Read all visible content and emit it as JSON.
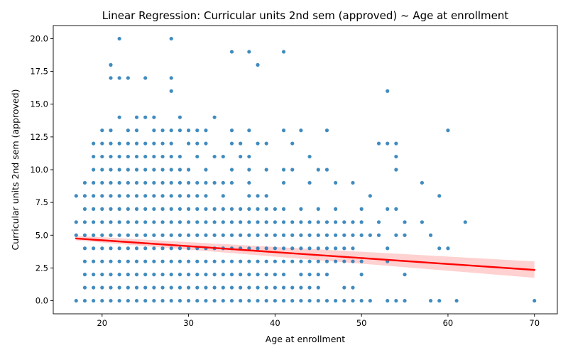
{
  "chart_data": {
    "type": "scatter",
    "title": "Linear Regression: Curricular units 2nd sem (approved) ~ Age at enrollment",
    "xlabel": "Age at enrollment",
    "ylabel": "Curricular units 2nd sem (approved)",
    "xlim": [
      14.35,
      72.65
    ],
    "ylim": [
      -1.0,
      21.0
    ],
    "xticks": [
      20,
      30,
      40,
      50,
      60,
      70
    ],
    "yticks": [
      0.0,
      2.5,
      5.0,
      7.5,
      10.0,
      12.5,
      15.0,
      17.5,
      20.0
    ],
    "xtick_labels": [
      "20",
      "30",
      "40",
      "50",
      "60",
      "70"
    ],
    "ytick_labels": [
      "0.0",
      "2.5",
      "5.0",
      "7.5",
      "10.0",
      "12.5",
      "15.0",
      "17.5",
      "20.0"
    ],
    "grid": false,
    "legend": "none",
    "colors": {
      "points": "#1f77b4",
      "regression_line": "#ff0000",
      "confidence_band": "#ffb3b3"
    },
    "regression": {
      "x": [
        17,
        70
      ],
      "y": [
        4.75,
        2.35
      ],
      "ci_lower": [
        4.6,
        1.75
      ],
      "ci_upper": [
        4.95,
        3.0
      ]
    },
    "points": [
      [
        17,
        0
      ],
      [
        17,
        5
      ],
      [
        17,
        6
      ],
      [
        17,
        8
      ],
      [
        18,
        0
      ],
      [
        18,
        1
      ],
      [
        18,
        2
      ],
      [
        18,
        3
      ],
      [
        18,
        4
      ],
      [
        18,
        5
      ],
      [
        18,
        6
      ],
      [
        18,
        7
      ],
      [
        18,
        8
      ],
      [
        18,
        9
      ],
      [
        19,
        0
      ],
      [
        19,
        1
      ],
      [
        19,
        2
      ],
      [
        19,
        3
      ],
      [
        19,
        4
      ],
      [
        19,
        5
      ],
      [
        19,
        6
      ],
      [
        19,
        7
      ],
      [
        19,
        8
      ],
      [
        19,
        9
      ],
      [
        19,
        10
      ],
      [
        19,
        11
      ],
      [
        19,
        12
      ],
      [
        20,
        0
      ],
      [
        20,
        1
      ],
      [
        20,
        2
      ],
      [
        20,
        3
      ],
      [
        20,
        4
      ],
      [
        20,
        5
      ],
      [
        20,
        6
      ],
      [
        20,
        7
      ],
      [
        20,
        8
      ],
      [
        20,
        9
      ],
      [
        20,
        10
      ],
      [
        20,
        11
      ],
      [
        20,
        12
      ],
      [
        20,
        13
      ],
      [
        21,
        0
      ],
      [
        21,
        1
      ],
      [
        21,
        2
      ],
      [
        21,
        3
      ],
      [
        21,
        4
      ],
      [
        21,
        5
      ],
      [
        21,
        6
      ],
      [
        21,
        7
      ],
      [
        21,
        8
      ],
      [
        21,
        9
      ],
      [
        21,
        10
      ],
      [
        21,
        11
      ],
      [
        21,
        12
      ],
      [
        21,
        13
      ],
      [
        21,
        17
      ],
      [
        21,
        18
      ],
      [
        22,
        0
      ],
      [
        22,
        1
      ],
      [
        22,
        2
      ],
      [
        22,
        3
      ],
      [
        22,
        4
      ],
      [
        22,
        5
      ],
      [
        22,
        6
      ],
      [
        22,
        7
      ],
      [
        22,
        8
      ],
      [
        22,
        9
      ],
      [
        22,
        10
      ],
      [
        22,
        11
      ],
      [
        22,
        12
      ],
      [
        22,
        14
      ],
      [
        22,
        17
      ],
      [
        22,
        20
      ],
      [
        23,
        0
      ],
      [
        23,
        1
      ],
      [
        23,
        2
      ],
      [
        23,
        3
      ],
      [
        23,
        4
      ],
      [
        23,
        5
      ],
      [
        23,
        6
      ],
      [
        23,
        7
      ],
      [
        23,
        8
      ],
      [
        23,
        9
      ],
      [
        23,
        10
      ],
      [
        23,
        11
      ],
      [
        23,
        12
      ],
      [
        23,
        13
      ],
      [
        23,
        17
      ],
      [
        24,
        0
      ],
      [
        24,
        1
      ],
      [
        24,
        2
      ],
      [
        24,
        3
      ],
      [
        24,
        4
      ],
      [
        24,
        5
      ],
      [
        24,
        6
      ],
      [
        24,
        7
      ],
      [
        24,
        8
      ],
      [
        24,
        9
      ],
      [
        24,
        10
      ],
      [
        24,
        11
      ],
      [
        24,
        12
      ],
      [
        24,
        13
      ],
      [
        24,
        14
      ],
      [
        25,
        0
      ],
      [
        25,
        1
      ],
      [
        25,
        2
      ],
      [
        25,
        3
      ],
      [
        25,
        4
      ],
      [
        25,
        5
      ],
      [
        25,
        6
      ],
      [
        25,
        7
      ],
      [
        25,
        8
      ],
      [
        25,
        9
      ],
      [
        25,
        10
      ],
      [
        25,
        11
      ],
      [
        25,
        12
      ],
      [
        25,
        14
      ],
      [
        25,
        17
      ],
      [
        26,
        0
      ],
      [
        26,
        1
      ],
      [
        26,
        2
      ],
      [
        26,
        3
      ],
      [
        26,
        4
      ],
      [
        26,
        5
      ],
      [
        26,
        6
      ],
      [
        26,
        7
      ],
      [
        26,
        8
      ],
      [
        26,
        9
      ],
      [
        26,
        10
      ],
      [
        26,
        11
      ],
      [
        26,
        12
      ],
      [
        26,
        13
      ],
      [
        26,
        14
      ],
      [
        27,
        0
      ],
      [
        27,
        1
      ],
      [
        27,
        2
      ],
      [
        27,
        3
      ],
      [
        27,
        4
      ],
      [
        27,
        5
      ],
      [
        27,
        6
      ],
      [
        27,
        7
      ],
      [
        27,
        8
      ],
      [
        27,
        9
      ],
      [
        27,
        10
      ],
      [
        27,
        11
      ],
      [
        27,
        12
      ],
      [
        27,
        13
      ],
      [
        28,
        0
      ],
      [
        28,
        1
      ],
      [
        28,
        2
      ],
      [
        28,
        3
      ],
      [
        28,
        4
      ],
      [
        28,
        5
      ],
      [
        28,
        6
      ],
      [
        28,
        7
      ],
      [
        28,
        8
      ],
      [
        28,
        9
      ],
      [
        28,
        10
      ],
      [
        28,
        11
      ],
      [
        28,
        12
      ],
      [
        28,
        13
      ],
      [
        28,
        16
      ],
      [
        28,
        17
      ],
      [
        28,
        20
      ],
      [
        29,
        0
      ],
      [
        29,
        1
      ],
      [
        29,
        2
      ],
      [
        29,
        3
      ],
      [
        29,
        4
      ],
      [
        29,
        5
      ],
      [
        29,
        6
      ],
      [
        29,
        7
      ],
      [
        29,
        8
      ],
      [
        29,
        9
      ],
      [
        29,
        10
      ],
      [
        29,
        11
      ],
      [
        29,
        13
      ],
      [
        29,
        14
      ],
      [
        30,
        0
      ],
      [
        30,
        1
      ],
      [
        30,
        2
      ],
      [
        30,
        3
      ],
      [
        30,
        4
      ],
      [
        30,
        5
      ],
      [
        30,
        6
      ],
      [
        30,
        7
      ],
      [
        30,
        8
      ],
      [
        30,
        9
      ],
      [
        30,
        10
      ],
      [
        30,
        12
      ],
      [
        30,
        13
      ],
      [
        31,
        0
      ],
      [
        31,
        1
      ],
      [
        31,
        2
      ],
      [
        31,
        3
      ],
      [
        31,
        4
      ],
      [
        31,
        5
      ],
      [
        31,
        6
      ],
      [
        31,
        7
      ],
      [
        31,
        8
      ],
      [
        31,
        9
      ],
      [
        31,
        11
      ],
      [
        31,
        12
      ],
      [
        31,
        13
      ],
      [
        32,
        0
      ],
      [
        32,
        1
      ],
      [
        32,
        2
      ],
      [
        32,
        3
      ],
      [
        32,
        4
      ],
      [
        32,
        5
      ],
      [
        32,
        6
      ],
      [
        32,
        7
      ],
      [
        32,
        8
      ],
      [
        32,
        9
      ],
      [
        32,
        10
      ],
      [
        32,
        12
      ],
      [
        32,
        13
      ],
      [
        33,
        0
      ],
      [
        33,
        1
      ],
      [
        33,
        2
      ],
      [
        33,
        3
      ],
      [
        33,
        4
      ],
      [
        33,
        5
      ],
      [
        33,
        6
      ],
      [
        33,
        7
      ],
      [
        33,
        9
      ],
      [
        33,
        11
      ],
      [
        33,
        14
      ],
      [
        34,
        0
      ],
      [
        34,
        1
      ],
      [
        34,
        2
      ],
      [
        34,
        3
      ],
      [
        34,
        4
      ],
      [
        34,
        5
      ],
      [
        34,
        6
      ],
      [
        34,
        7
      ],
      [
        34,
        8
      ],
      [
        34,
        9
      ],
      [
        34,
        11
      ],
      [
        35,
        0
      ],
      [
        35,
        1
      ],
      [
        35,
        2
      ],
      [
        35,
        3
      ],
      [
        35,
        4
      ],
      [
        35,
        5
      ],
      [
        35,
        6
      ],
      [
        35,
        7
      ],
      [
        35,
        9
      ],
      [
        35,
        10
      ],
      [
        35,
        12
      ],
      [
        35,
        13
      ],
      [
        35,
        19
      ],
      [
        36,
        0
      ],
      [
        36,
        1
      ],
      [
        36,
        2
      ],
      [
        36,
        3
      ],
      [
        36,
        4
      ],
      [
        36,
        5
      ],
      [
        36,
        6
      ],
      [
        36,
        7
      ],
      [
        36,
        11
      ],
      [
        36,
        12
      ],
      [
        37,
        0
      ],
      [
        37,
        1
      ],
      [
        37,
        2
      ],
      [
        37,
        3
      ],
      [
        37,
        4
      ],
      [
        37,
        5
      ],
      [
        37,
        6
      ],
      [
        37,
        7
      ],
      [
        37,
        8
      ],
      [
        37,
        9
      ],
      [
        37,
        10
      ],
      [
        37,
        11
      ],
      [
        37,
        13
      ],
      [
        37,
        19
      ],
      [
        38,
        0
      ],
      [
        38,
        1
      ],
      [
        38,
        2
      ],
      [
        38,
        3
      ],
      [
        38,
        4
      ],
      [
        38,
        5
      ],
      [
        38,
        6
      ],
      [
        38,
        7
      ],
      [
        38,
        8
      ],
      [
        38,
        12
      ],
      [
        38,
        18
      ],
      [
        39,
        0
      ],
      [
        39,
        1
      ],
      [
        39,
        2
      ],
      [
        39,
        3
      ],
      [
        39,
        4
      ],
      [
        39,
        5
      ],
      [
        39,
        6
      ],
      [
        39,
        7
      ],
      [
        39,
        8
      ],
      [
        39,
        10
      ],
      [
        39,
        12
      ],
      [
        40,
        0
      ],
      [
        40,
        1
      ],
      [
        40,
        2
      ],
      [
        40,
        3
      ],
      [
        40,
        4
      ],
      [
        40,
        5
      ],
      [
        40,
        6
      ],
      [
        40,
        7
      ],
      [
        41,
        0
      ],
      [
        41,
        1
      ],
      [
        41,
        2
      ],
      [
        41,
        3
      ],
      [
        41,
        4
      ],
      [
        41,
        5
      ],
      [
        41,
        6
      ],
      [
        41,
        7
      ],
      [
        41,
        9
      ],
      [
        41,
        10
      ],
      [
        41,
        13
      ],
      [
        41,
        19
      ],
      [
        42,
        0
      ],
      [
        42,
        1
      ],
      [
        42,
        3
      ],
      [
        42,
        4
      ],
      [
        42,
        5
      ],
      [
        42,
        6
      ],
      [
        42,
        10
      ],
      [
        42,
        12
      ],
      [
        43,
        0
      ],
      [
        43,
        1
      ],
      [
        43,
        2
      ],
      [
        43,
        3
      ],
      [
        43,
        4
      ],
      [
        43,
        5
      ],
      [
        43,
        6
      ],
      [
        43,
        7
      ],
      [
        43,
        13
      ],
      [
        44,
        0
      ],
      [
        44,
        1
      ],
      [
        44,
        2
      ],
      [
        44,
        3
      ],
      [
        44,
        4
      ],
      [
        44,
        5
      ],
      [
        44,
        6
      ],
      [
        44,
        9
      ],
      [
        44,
        11
      ],
      [
        45,
        0
      ],
      [
        45,
        1
      ],
      [
        45,
        2
      ],
      [
        45,
        3
      ],
      [
        45,
        4
      ],
      [
        45,
        5
      ],
      [
        45,
        6
      ],
      [
        45,
        7
      ],
      [
        45,
        10
      ],
      [
        46,
        0
      ],
      [
        46,
        2
      ],
      [
        46,
        3
      ],
      [
        46,
        4
      ],
      [
        46,
        5
      ],
      [
        46,
        6
      ],
      [
        46,
        10
      ],
      [
        46,
        13
      ],
      [
        47,
        0
      ],
      [
        47,
        3
      ],
      [
        47,
        4
      ],
      [
        47,
        5
      ],
      [
        47,
        6
      ],
      [
        47,
        7
      ],
      [
        47,
        9
      ],
      [
        48,
        0
      ],
      [
        48,
        1
      ],
      [
        48,
        3
      ],
      [
        48,
        4
      ],
      [
        48,
        5
      ],
      [
        48,
        6
      ],
      [
        49,
        0
      ],
      [
        49,
        1
      ],
      [
        49,
        3
      ],
      [
        49,
        4
      ],
      [
        49,
        5
      ],
      [
        49,
        6
      ],
      [
        49,
        9
      ],
      [
        50,
        0
      ],
      [
        50,
        2
      ],
      [
        50,
        3
      ],
      [
        50,
        5
      ],
      [
        50,
        6
      ],
      [
        50,
        7
      ],
      [
        51,
        0
      ],
      [
        51,
        5
      ],
      [
        51,
        8
      ],
      [
        52,
        5
      ],
      [
        52,
        6
      ],
      [
        52,
        12
      ],
      [
        53,
        0
      ],
      [
        53,
        3
      ],
      [
        53,
        4
      ],
      [
        53,
        7
      ],
      [
        53,
        12
      ],
      [
        53,
        16
      ],
      [
        54,
        0
      ],
      [
        54,
        5
      ],
      [
        54,
        7
      ],
      [
        54,
        10
      ],
      [
        54,
        11
      ],
      [
        54,
        12
      ],
      [
        55,
        0
      ],
      [
        55,
        2
      ],
      [
        55,
        5
      ],
      [
        55,
        6
      ],
      [
        57,
        6
      ],
      [
        57,
        9
      ],
      [
        58,
        0
      ],
      [
        58,
        5
      ],
      [
        59,
        0
      ],
      [
        59,
        4
      ],
      [
        59,
        8
      ],
      [
        60,
        4
      ],
      [
        60,
        13
      ],
      [
        61,
        0
      ],
      [
        62,
        6
      ],
      [
        70,
        0
      ]
    ]
  }
}
